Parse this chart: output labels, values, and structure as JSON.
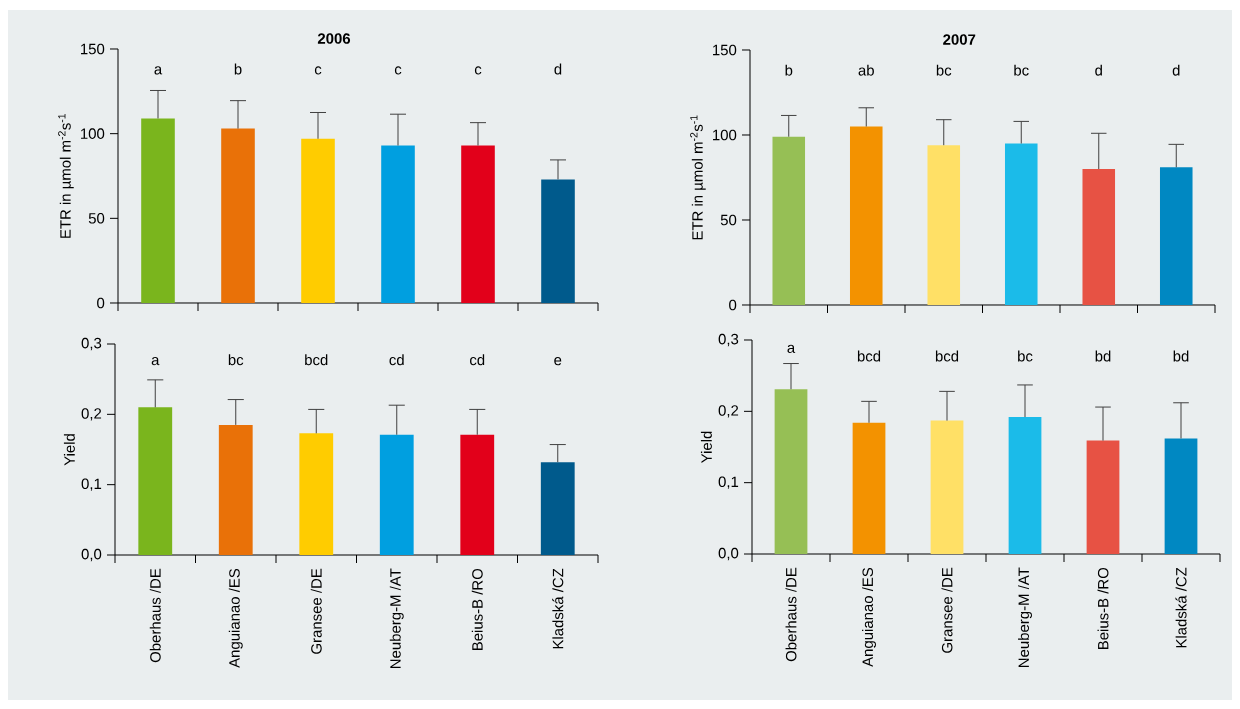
{
  "chart_data": [
    {
      "type": "bar",
      "title": "2006",
      "ylabel": "ETR in µmol m$^{-2}$s$^{-1}$",
      "categories": [
        null,
        null,
        null,
        null,
        null,
        null
      ],
      "values": [
        109,
        103,
        97,
        93,
        93,
        73
      ],
      "errors": [
        [
          109,
          125.5
        ],
        [
          103,
          119.5
        ],
        [
          97,
          112.5
        ],
        [
          93,
          111.5
        ],
        [
          93,
          106.5
        ],
        [
          73,
          84.5
        ]
      ],
      "colors": [
        "#7ab51d",
        "#e97108",
        "#ffcc00",
        "#009fe0",
        "#e2001a",
        "#005a8c"
      ],
      "ylim": [
        0,
        150
      ],
      "yticks": [
        0,
        50,
        100,
        150
      ],
      "annotations": [
        "a",
        "b",
        "c",
        "c",
        "c",
        "d"
      ]
    },
    {
      "type": "bar",
      "title": "2007",
      "ylabel": "ETR in µmol m$^{-2}$s$^{-1}$",
      "categories": [
        null,
        null,
        null,
        null,
        null,
        null
      ],
      "values": [
        99,
        105,
        94,
        95,
        80,
        81
      ],
      "errors": [
        [
          99,
          111.5
        ],
        [
          105,
          116
        ],
        [
          94,
          109
        ],
        [
          95,
          108
        ],
        [
          80,
          101
        ],
        [
          81,
          94.5
        ]
      ],
      "colors": [
        "#96bf55",
        "#f39200",
        "#ffe066",
        "#1bbbe9",
        "#e75244",
        "#0088c2"
      ],
      "ylim": [
        0,
        150
      ],
      "yticks": [
        0,
        50,
        100,
        150
      ],
      "annotations": [
        "b",
        "ab",
        "bc",
        "bc",
        "d",
        "d"
      ]
    },
    {
      "type": "bar",
      "ylabel": "Yield",
      "categories": [
        "Oberhaus /DE",
        "Anguianao /ES",
        "Gransee /DE",
        "Neuberg-M /AT",
        "Beius-B /RO",
        "Kladská /CZ"
      ],
      "values": [
        0.21,
        0.185,
        0.173,
        0.171,
        0.171,
        0.132
      ],
      "errors": [
        [
          0.21,
          0.249
        ],
        [
          0.185,
          0.221
        ],
        [
          0.173,
          0.207
        ],
        [
          0.171,
          0.213
        ],
        [
          0.171,
          0.207
        ],
        [
          0.132,
          0.157
        ]
      ],
      "colors": [
        "#7ab51d",
        "#e97108",
        "#ffcc00",
        "#009fe0",
        "#e2001a",
        "#005a8c"
      ],
      "ylim": [
        0,
        0.3
      ],
      "yticks": [
        {
          "value": 0,
          "label": "0,0"
        },
        {
          "value": 0.1,
          "label": "0,1"
        },
        {
          "value": 0.2,
          "label": "0,2"
        },
        {
          "value": 0.3,
          "label": "0,3"
        }
      ],
      "annotations": [
        "a",
        "bc",
        "bcd",
        "cd",
        "cd",
        "e"
      ]
    },
    {
      "type": "bar",
      "ylabel": "Yield",
      "categories": [
        "Oberhaus /DE",
        "Anguianao /ES",
        "Gransee /DE",
        "Neuberg-M /AT",
        "Beius-B /RO",
        "Kladská /CZ"
      ],
      "values": [
        0.231,
        0.184,
        0.187,
        0.192,
        0.159,
        0.162
      ],
      "errors": [
        [
          0.231,
          0.267
        ],
        [
          0.184,
          0.214
        ],
        [
          0.187,
          0.228
        ],
        [
          0.192,
          0.237
        ],
        [
          0.159,
          0.206
        ],
        [
          0.162,
          0.212
        ]
      ],
      "colors": [
        "#96bf55",
        "#f39200",
        "#ffe066",
        "#1bbbe9",
        "#e75244",
        "#0088c2"
      ],
      "ylim": [
        0,
        0.3
      ],
      "yticks": [
        {
          "value": 0,
          "label": "0,0"
        },
        {
          "value": 0.1,
          "label": "0,1"
        },
        {
          "value": 0.2,
          "label": "0,2"
        },
        {
          "value": 0.3,
          "label": "0,3"
        }
      ],
      "annotations": [
        "a",
        "bcd",
        "bcd",
        "bc",
        "bd",
        "bd"
      ]
    }
  ]
}
